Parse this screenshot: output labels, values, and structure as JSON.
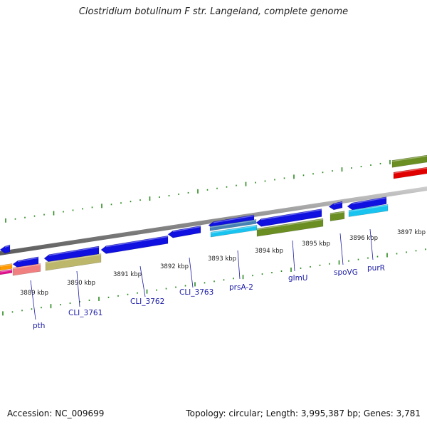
{
  "title": "Clostridium botulinum F str. Langeland, complete genome",
  "footer": {
    "accession": "Accession: NC_009699",
    "summary": "Topology: circular; Length: 3,995,387 bp; Genes: 3,781"
  },
  "map": {
    "kbp_ticks": [
      {
        "label": "3889 kbp"
      },
      {
        "label": "3890 kbp"
      },
      {
        "label": "3891 kbp"
      },
      {
        "label": "3892 kbp"
      },
      {
        "label": "3893 kbp"
      },
      {
        "label": "3894 kbp"
      },
      {
        "label": "3895 kbp"
      },
      {
        "label": "3896 kbp"
      },
      {
        "label": "3897 kbp"
      }
    ],
    "gene_labels": [
      {
        "name": "pth"
      },
      {
        "name": "CLI_3761"
      },
      {
        "name": "CLI_3762"
      },
      {
        "name": "CLI_3763"
      },
      {
        "name": "prsA-2"
      },
      {
        "name": "glmU"
      },
      {
        "name": "spoVG"
      },
      {
        "name": "purR"
      }
    ],
    "colors": {
      "backbone": "#8c8c8c",
      "tick": "#2a8a1e",
      "blue": "#1010e0",
      "olive": "#6b8e23",
      "khaki": "#bdb76b",
      "cyan": "#19c3f0",
      "steelblue": "#4682b4",
      "red": "#e00000",
      "salmon": "#f08080",
      "orange": "#ff9900",
      "magenta": "#e0108a",
      "label": "#1a1aa6"
    }
  }
}
